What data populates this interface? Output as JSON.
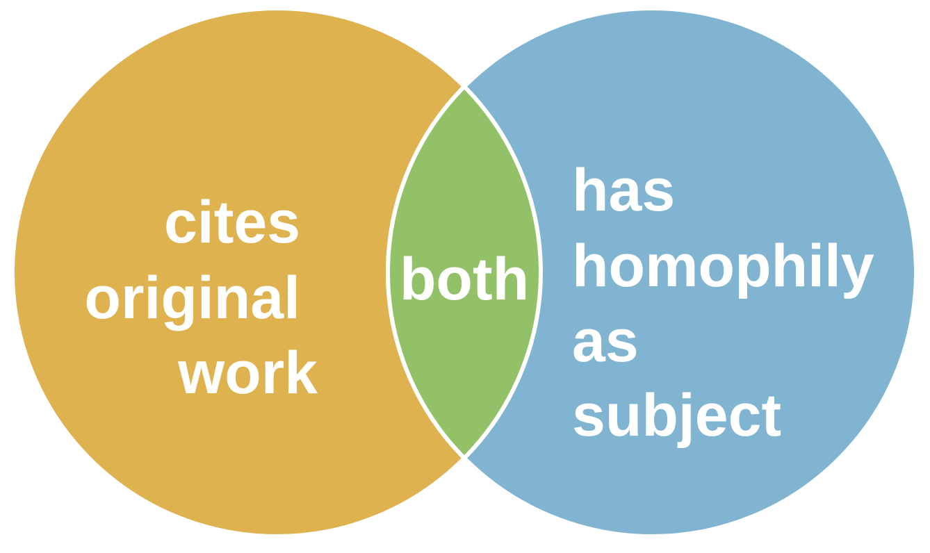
{
  "diagram": {
    "type": "venn",
    "sets": [
      {
        "id": "left",
        "lines": [
          "cites",
          "original",
          "work"
        ],
        "color": "#DEB24F"
      },
      {
        "id": "right",
        "lines": [
          "has",
          "homophily",
          "as",
          "subject"
        ],
        "color": "#80B4D1"
      }
    ],
    "intersection": {
      "label": "both",
      "color": "#93C168"
    },
    "outline_color": "#FFFFFF"
  }
}
